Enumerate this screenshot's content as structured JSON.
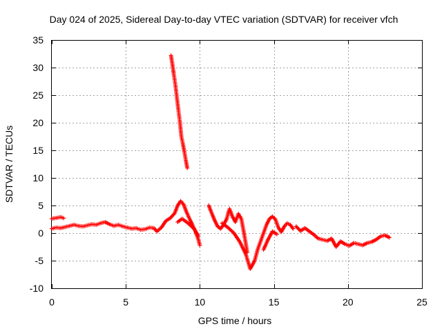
{
  "chart_data": {
    "type": "scatter",
    "title": "Day 024 of 2025, Sidereal Day-to-day VTEC variation (SDTVAR) for receiver vfch",
    "xlabel": "GPS time / hours",
    "ylabel": "SDTVAR / TECUs",
    "xlim": [
      0,
      25
    ],
    "ylim": [
      -10,
      35
    ],
    "xticks": [
      0,
      5,
      10,
      15,
      20,
      25
    ],
    "yticks": [
      -10,
      -5,
      0,
      5,
      10,
      15,
      20,
      25,
      30,
      35
    ],
    "grid": true,
    "marker": "plus",
    "color": "#ff0000",
    "series": [
      {
        "name": "SDTVAR",
        "points": [
          [
            0.0,
            2.6
          ],
          [
            0.2,
            2.7
          ],
          [
            0.4,
            2.8
          ],
          [
            0.6,
            2.9
          ],
          [
            0.8,
            2.7
          ],
          [
            0.0,
            0.8
          ],
          [
            0.3,
            1.0
          ],
          [
            0.6,
            0.9
          ],
          [
            0.9,
            1.1
          ],
          [
            1.2,
            1.3
          ],
          [
            1.5,
            1.5
          ],
          [
            1.8,
            1.3
          ],
          [
            2.1,
            1.2
          ],
          [
            2.4,
            1.4
          ],
          [
            2.7,
            1.6
          ],
          [
            3.0,
            1.5
          ],
          [
            3.3,
            1.8
          ],
          [
            3.6,
            2.0
          ],
          [
            3.9,
            1.6
          ],
          [
            4.2,
            1.3
          ],
          [
            4.5,
            1.5
          ],
          [
            4.8,
            1.2
          ],
          [
            5.1,
            1.0
          ],
          [
            5.4,
            0.8
          ],
          [
            5.7,
            0.9
          ],
          [
            6.0,
            0.6
          ],
          [
            6.3,
            0.7
          ],
          [
            6.6,
            1.0
          ],
          [
            6.9,
            0.9
          ],
          [
            7.1,
            0.3
          ],
          [
            7.4,
            1.0
          ],
          [
            7.7,
            2.2
          ],
          [
            8.0,
            2.7
          ],
          [
            8.3,
            3.6
          ],
          [
            8.5,
            5.0
          ],
          [
            8.7,
            5.8
          ],
          [
            8.9,
            5.2
          ],
          [
            9.1,
            3.8
          ],
          [
            9.3,
            2.6
          ],
          [
            9.5,
            1.5
          ],
          [
            9.7,
            0.3
          ],
          [
            9.9,
            -1.2
          ],
          [
            10.0,
            -2.2
          ],
          [
            8.5,
            2.0
          ],
          [
            8.8,
            2.6
          ],
          [
            9.2,
            1.8
          ],
          [
            9.6,
            0.8
          ],
          [
            9.9,
            -0.5
          ],
          [
            8.05,
            32.2
          ],
          [
            8.15,
            30.5
          ],
          [
            8.25,
            28.6
          ],
          [
            8.35,
            26.8
          ],
          [
            8.45,
            24.5
          ],
          [
            8.55,
            22.3
          ],
          [
            8.65,
            20.2
          ],
          [
            8.75,
            17.5
          ],
          [
            8.85,
            16.2
          ],
          [
            8.95,
            14.8
          ],
          [
            9.05,
            13.2
          ],
          [
            9.15,
            11.8
          ],
          [
            10.6,
            5.0
          ],
          [
            10.8,
            3.6
          ],
          [
            11.0,
            2.3
          ],
          [
            11.2,
            1.2
          ],
          [
            11.4,
            0.8
          ],
          [
            11.6,
            1.5
          ],
          [
            11.8,
            2.5
          ],
          [
            12.0,
            4.4
          ],
          [
            12.2,
            3.0
          ],
          [
            12.4,
            2.0
          ],
          [
            12.6,
            3.5
          ],
          [
            12.8,
            2.6
          ],
          [
            13.0,
            -0.3
          ],
          [
            13.2,
            -3.5
          ],
          [
            11.5,
            1.8
          ],
          [
            11.9,
            1.0
          ],
          [
            12.3,
            0.0
          ],
          [
            12.7,
            -1.6
          ],
          [
            13.1,
            -3.8
          ],
          [
            13.4,
            -6.5
          ],
          [
            13.7,
            -5.0
          ],
          [
            13.9,
            -3.0
          ],
          [
            14.1,
            -1.5
          ],
          [
            14.3,
            0.0
          ],
          [
            14.5,
            1.5
          ],
          [
            14.7,
            2.6
          ],
          [
            14.9,
            3.0
          ],
          [
            15.1,
            2.5
          ],
          [
            15.3,
            1.0
          ],
          [
            15.5,
            0.2
          ],
          [
            15.7,
            1.2
          ],
          [
            15.9,
            1.8
          ],
          [
            16.1,
            1.5
          ],
          [
            16.3,
            0.8
          ],
          [
            14.3,
            -3.0
          ],
          [
            14.6,
            -1.2
          ],
          [
            14.9,
            0.3
          ],
          [
            15.2,
            -0.2
          ],
          [
            16.5,
            1.2
          ],
          [
            16.8,
            0.4
          ],
          [
            17.1,
            0.9
          ],
          [
            17.4,
            0.3
          ],
          [
            17.7,
            -0.3
          ],
          [
            18.0,
            -1.0
          ],
          [
            18.3,
            -1.2
          ],
          [
            18.6,
            -1.4
          ],
          [
            18.9,
            -1.0
          ],
          [
            19.2,
            -2.5
          ],
          [
            19.5,
            -1.5
          ],
          [
            19.8,
            -2.0
          ],
          [
            20.1,
            -2.3
          ],
          [
            20.4,
            -1.8
          ],
          [
            20.7,
            -2.0
          ],
          [
            21.0,
            -2.2
          ],
          [
            21.3,
            -1.8
          ],
          [
            21.6,
            -1.6
          ],
          [
            21.9,
            -1.2
          ],
          [
            22.2,
            -0.6
          ],
          [
            22.5,
            -0.4
          ],
          [
            22.8,
            -0.8
          ]
        ]
      }
    ]
  }
}
